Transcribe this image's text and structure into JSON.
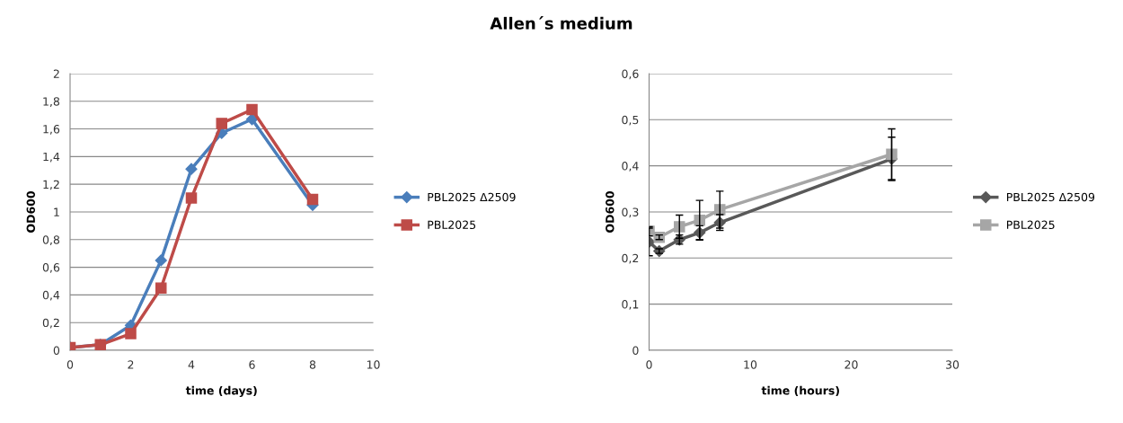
{
  "chart_data": [
    {
      "type": "line",
      "xlabel": "time (days)",
      "ylabel": "OD600",
      "x": [
        0,
        1,
        2,
        3,
        4,
        5,
        6,
        8
      ],
      "series": [
        {
          "name": "PBL2025 Δ2509",
          "color": "#4a7ebb",
          "marker": "diamond",
          "values": [
            0.02,
            0.04,
            0.18,
            0.65,
            1.31,
            1.57,
            1.67,
            1.05
          ]
        },
        {
          "name": "PBL2025",
          "color": "#be4b48",
          "marker": "square",
          "values": [
            0.02,
            0.04,
            0.12,
            0.45,
            1.1,
            1.64,
            1.74,
            1.09
          ]
        }
      ],
      "xlim": [
        0,
        10
      ],
      "xticks": [
        0,
        2,
        4,
        6,
        8,
        10
      ],
      "ylim": [
        0,
        2
      ],
      "yticks": [
        0,
        {
          "value": 0.2,
          "label": "0,2"
        },
        {
          "value": 0.4,
          "label": "0,4"
        },
        {
          "value": 0.6,
          "label": "0,6"
        },
        {
          "value": 0.8,
          "label": "0,8"
        },
        1,
        {
          "value": 1.2,
          "label": "1,2"
        },
        {
          "value": 1.4,
          "label": "1,4"
        },
        {
          "value": 1.6,
          "label": "1,6"
        },
        {
          "value": 1.8,
          "label": "1,8"
        },
        2
      ],
      "grid": "y",
      "legend": "right",
      "line_style": "solid"
    },
    {
      "type": "line",
      "title": "Allen´s medium",
      "xlabel": "time (hours)",
      "ylabel": "OD600",
      "x": [
        0,
        1,
        3,
        5,
        7,
        24
      ],
      "series": [
        {
          "name": "PBL2025 Δ2509",
          "color": "#595959",
          "marker": "diamond",
          "values": [
            0.235,
            0.215,
            0.24,
            0.255,
            0.277,
            0.415
          ],
          "errors": [
            0.03,
            0.005,
            0.01,
            0.015,
            0.017,
            0.047
          ]
        },
        {
          "name": "PBL2025",
          "color": "#a6a6a6",
          "marker": "square",
          "values": [
            0.258,
            0.245,
            0.268,
            0.282,
            0.305,
            0.425
          ],
          "errors": [
            0.01,
            0.005,
            0.025,
            0.043,
            0.04,
            0.055
          ]
        }
      ],
      "xlim": [
        0,
        30
      ],
      "xticks": [
        0,
        10,
        20,
        30
      ],
      "ylim": [
        0,
        0.6
      ],
      "yticks": [
        0,
        {
          "value": 0.1,
          "label": "0,1"
        },
        {
          "value": 0.2,
          "label": "0,2"
        },
        {
          "value": 0.3,
          "label": "0,3"
        },
        {
          "value": 0.4,
          "label": "0,4"
        },
        {
          "value": 0.5,
          "label": "0,5"
        },
        {
          "value": 0.6,
          "label": "0,6"
        }
      ],
      "grid": "y",
      "legend": "right",
      "line_style": "solid"
    }
  ]
}
